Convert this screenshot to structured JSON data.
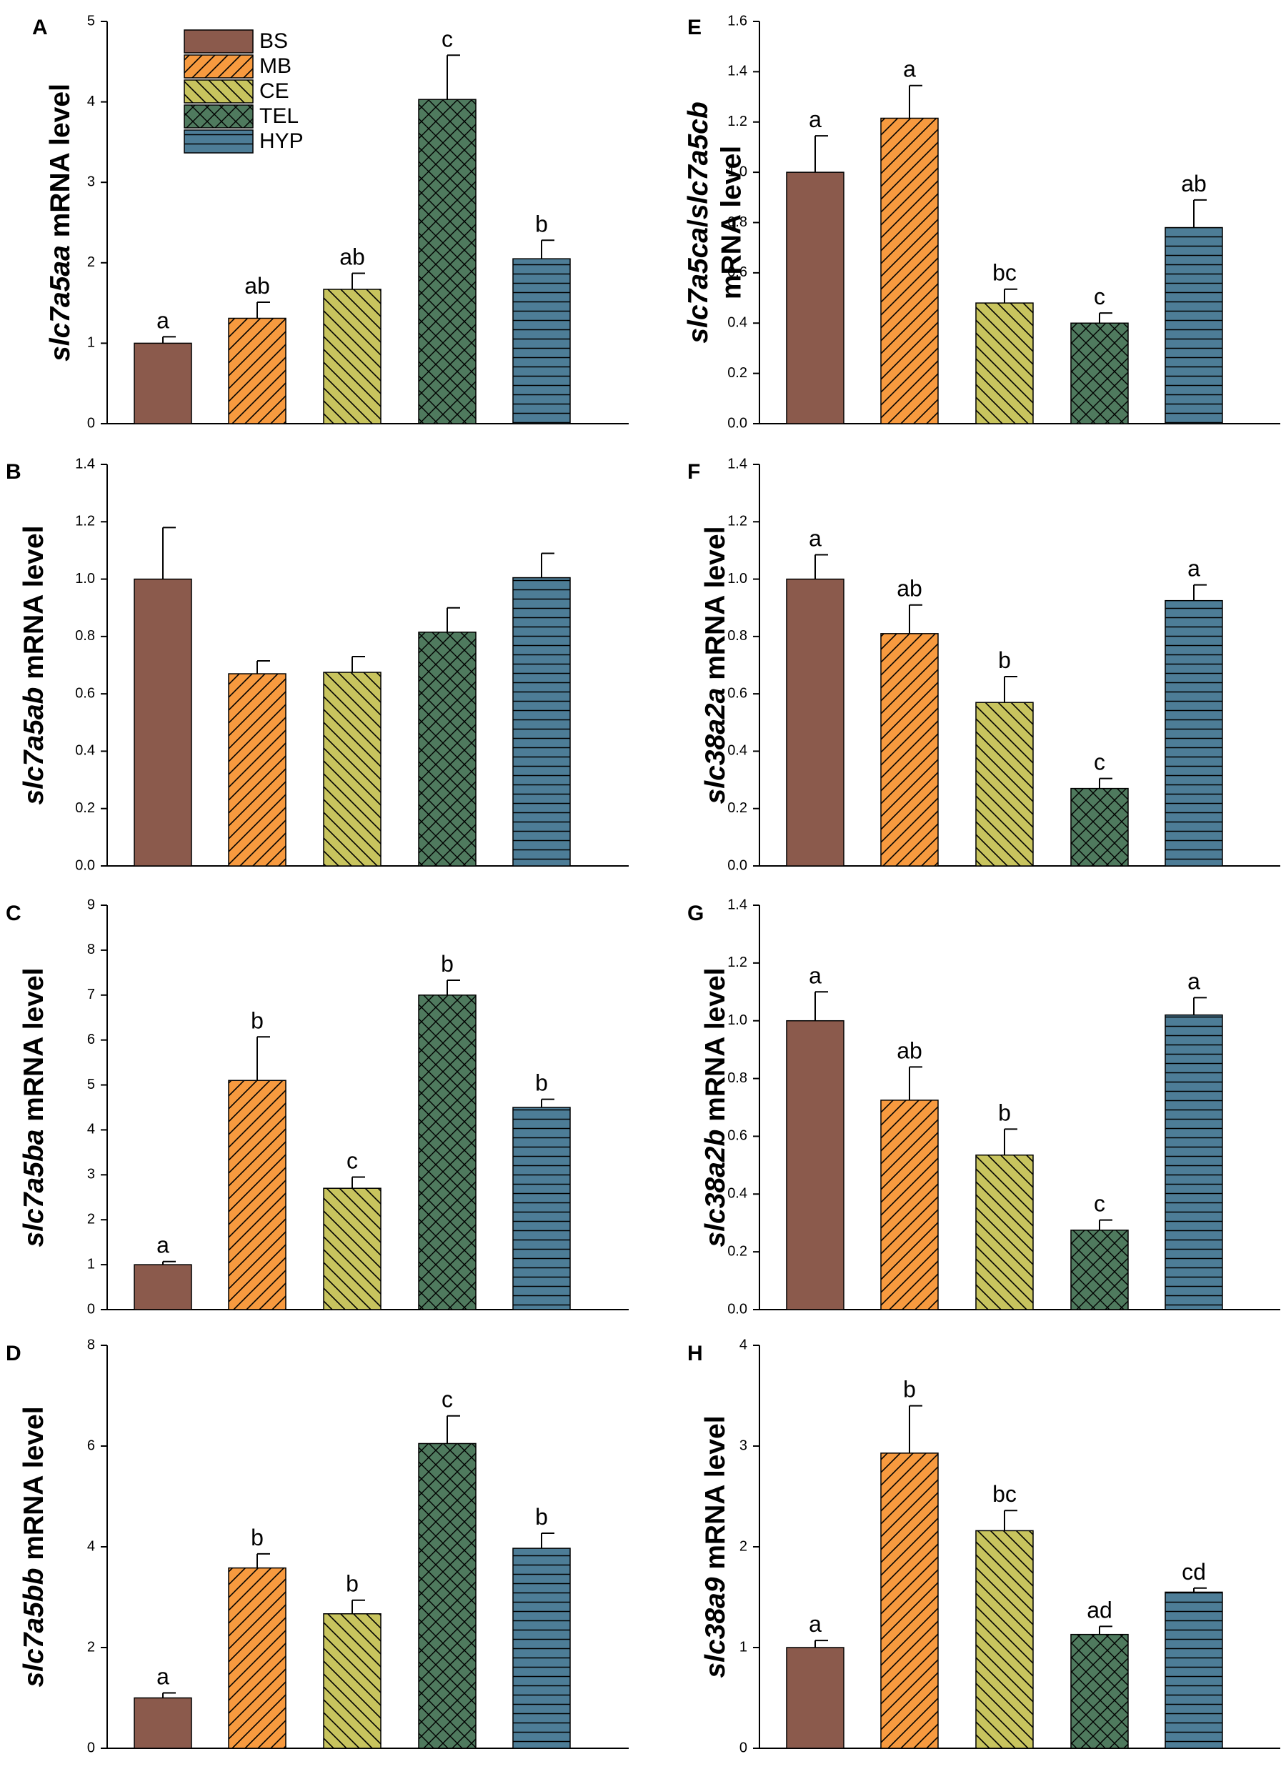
{
  "legend": {
    "items": [
      {
        "name": "BS",
        "color": "#8b5a4c",
        "pattern": "solid"
      },
      {
        "name": "MB",
        "color": "#f79a3f",
        "pattern": "hatch-up"
      },
      {
        "name": "CE",
        "color": "#c8c45e",
        "pattern": "hatch-down"
      },
      {
        "name": "TEL",
        "color": "#4f7a5e",
        "pattern": "crosshatch"
      },
      {
        "name": "HYP",
        "color": "#4d7d97",
        "pattern": "horizontal"
      }
    ]
  },
  "chart_data": [
    {
      "letter": "A",
      "type": "bar",
      "ylabel_parts": [
        {
          "t": "slc7a5aa",
          "i": true
        },
        {
          "t": " mRNA level",
          "i": false
        }
      ],
      "categories": [
        "BS",
        "MB",
        "CE",
        "TEL",
        "HYP"
      ],
      "ylim": [
        0,
        5
      ],
      "yticks": [
        {
          "v": 0,
          "label": "0"
        },
        {
          "v": 1,
          "label": "1"
        },
        {
          "v": 2,
          "label": "2"
        },
        {
          "v": 3,
          "label": "3"
        },
        {
          "v": 4,
          "label": "4"
        },
        {
          "v": 5,
          "label": "5"
        }
      ],
      "values": [
        1.0,
        1.31,
        1.67,
        4.03,
        2.05
      ],
      "errors": [
        0.08,
        0.2,
        0.2,
        0.55,
        0.23
      ],
      "letters": [
        "a",
        "ab",
        "ab",
        "c",
        "b"
      ]
    },
    {
      "letter": "B",
      "type": "bar",
      "ylabel_parts": [
        {
          "t": "slc7a5ab",
          "i": true
        },
        {
          "t": " mRNA level",
          "i": false
        }
      ],
      "categories": [
        "BS",
        "MB",
        "CE",
        "TEL",
        "HYP"
      ],
      "ylim": [
        0,
        1.4
      ],
      "yticks": [
        {
          "v": 0,
          "label": "0.0"
        },
        {
          "v": 0.2,
          "label": "0.2"
        },
        {
          "v": 0.4,
          "label": "0.4"
        },
        {
          "v": 0.6,
          "label": "0.6"
        },
        {
          "v": 0.8,
          "label": "0.8"
        },
        {
          "v": 1.0,
          "label": "1.0"
        },
        {
          "v": 1.2,
          "label": "1.2"
        },
        {
          "v": 1.4,
          "label": "1.4"
        }
      ],
      "values": [
        1.0,
        0.67,
        0.675,
        0.815,
        1.005
      ],
      "errors": [
        0.18,
        0.045,
        0.055,
        0.085,
        0.085
      ],
      "letters": []
    },
    {
      "letter": "C",
      "type": "bar",
      "ylabel_parts": [
        {
          "t": "slc7a5ba",
          "i": true
        },
        {
          "t": " mRNA level",
          "i": false
        }
      ],
      "categories": [
        "BS",
        "MB",
        "CE",
        "TEL",
        "HYP"
      ],
      "ylim": [
        0,
        9
      ],
      "yticks": [
        {
          "v": 0,
          "label": "0"
        },
        {
          "v": 1,
          "label": "1"
        },
        {
          "v": 2,
          "label": "2"
        },
        {
          "v": 3,
          "label": "3"
        },
        {
          "v": 4,
          "label": "4"
        },
        {
          "v": 5,
          "label": "5"
        },
        {
          "v": 6,
          "label": "6"
        },
        {
          "v": 7,
          "label": "7"
        },
        {
          "v": 8,
          "label": "8"
        },
        {
          "v": 9,
          "label": "9"
        }
      ],
      "values": [
        1.0,
        5.1,
        2.7,
        7.0,
        4.5
      ],
      "errors": [
        0.07,
        0.97,
        0.25,
        0.33,
        0.18
      ],
      "letters": [
        "a",
        "b",
        "c",
        "b",
        "b"
      ]
    },
    {
      "letter": "D",
      "type": "bar",
      "ylabel_parts": [
        {
          "t": "slc7a5bb",
          "i": true
        },
        {
          "t": " mRNA level",
          "i": false
        }
      ],
      "categories": [
        "BS",
        "MB",
        "CE",
        "TEL",
        "HYP"
      ],
      "ylim": [
        0,
        8
      ],
      "yticks": [
        {
          "v": 0,
          "label": "0"
        },
        {
          "v": 2,
          "label": "2"
        },
        {
          "v": 4,
          "label": "4"
        },
        {
          "v": 6,
          "label": "6"
        },
        {
          "v": 8,
          "label": "8"
        }
      ],
      "values": [
        1.0,
        3.58,
        2.67,
        6.05,
        3.97
      ],
      "errors": [
        0.1,
        0.28,
        0.27,
        0.55,
        0.3
      ],
      "letters": [
        "a",
        "b",
        "b",
        "c",
        "b"
      ]
    },
    {
      "letter": "E",
      "type": "bar",
      "ylabel_parts": [
        {
          "t": "slc7a5ca",
          "i": true
        },
        {
          "t": "/",
          "i": false
        },
        {
          "t": "slc7a5cb",
          "i": true
        }
      ],
      "ylabel_line2": "mRNA level",
      "categories": [
        "BS",
        "MB",
        "CE",
        "TEL",
        "HYP"
      ],
      "ylim": [
        0,
        1.6
      ],
      "yticks": [
        {
          "v": 0,
          "label": "0.0"
        },
        {
          "v": 0.2,
          "label": "0.2"
        },
        {
          "v": 0.4,
          "label": "0.4"
        },
        {
          "v": 0.6,
          "label": "0.6"
        },
        {
          "v": 0.8,
          "label": "0.8"
        },
        {
          "v": 1.0,
          "label": "1.0"
        },
        {
          "v": 1.2,
          "label": "1.2"
        },
        {
          "v": 1.4,
          "label": "1.4"
        },
        {
          "v": 1.6,
          "label": "1.6"
        }
      ],
      "values": [
        1.0,
        1.215,
        0.48,
        0.4,
        0.78
      ],
      "errors": [
        0.145,
        0.13,
        0.055,
        0.04,
        0.11
      ],
      "letters": [
        "a",
        "a",
        "bc",
        "c",
        "ab"
      ]
    },
    {
      "letter": "F",
      "type": "bar",
      "ylabel_parts": [
        {
          "t": "slc38a2a",
          "i": true
        },
        {
          "t": " mRNA level",
          "i": false
        }
      ],
      "categories": [
        "BS",
        "MB",
        "CE",
        "TEL",
        "HYP"
      ],
      "ylim": [
        0,
        1.4
      ],
      "yticks": [
        {
          "v": 0,
          "label": "0.0"
        },
        {
          "v": 0.2,
          "label": "0.2"
        },
        {
          "v": 0.4,
          "label": "0.4"
        },
        {
          "v": 0.6,
          "label": "0.6"
        },
        {
          "v": 0.8,
          "label": "0.8"
        },
        {
          "v": 1.0,
          "label": "1.0"
        },
        {
          "v": 1.2,
          "label": "1.2"
        },
        {
          "v": 1.4,
          "label": "1.4"
        }
      ],
      "values": [
        1.0,
        0.81,
        0.57,
        0.27,
        0.925
      ],
      "errors": [
        0.085,
        0.1,
        0.09,
        0.035,
        0.055
      ],
      "letters": [
        "a",
        "ab",
        "b",
        "c",
        "a"
      ]
    },
    {
      "letter": "G",
      "type": "bar",
      "ylabel_parts": [
        {
          "t": "slc38a2b",
          "i": true
        },
        {
          "t": " mRNA level",
          "i": false
        }
      ],
      "categories": [
        "BS",
        "MB",
        "CE",
        "TEL",
        "HYP"
      ],
      "ylim": [
        0,
        1.4
      ],
      "yticks": [
        {
          "v": 0,
          "label": "0.0"
        },
        {
          "v": 0.2,
          "label": "0.2"
        },
        {
          "v": 0.4,
          "label": "0.4"
        },
        {
          "v": 0.6,
          "label": "0.6"
        },
        {
          "v": 0.8,
          "label": "0.8"
        },
        {
          "v": 1.0,
          "label": "1.0"
        },
        {
          "v": 1.2,
          "label": "1.2"
        },
        {
          "v": 1.4,
          "label": "1.4"
        }
      ],
      "values": [
        1.0,
        0.725,
        0.535,
        0.275,
        1.02
      ],
      "errors": [
        0.1,
        0.115,
        0.09,
        0.035,
        0.06
      ],
      "letters": [
        "a",
        "ab",
        "b",
        "c",
        "a"
      ]
    },
    {
      "letter": "H",
      "type": "bar",
      "ylabel_parts": [
        {
          "t": "slc38a9",
          "i": true
        },
        {
          "t": " mRNA level",
          "i": false
        }
      ],
      "categories": [
        "BS",
        "MB",
        "CE",
        "TEL",
        "HYP"
      ],
      "ylim": [
        0,
        4
      ],
      "yticks": [
        {
          "v": 0,
          "label": "0"
        },
        {
          "v": 1,
          "label": "1"
        },
        {
          "v": 2,
          "label": "2"
        },
        {
          "v": 3,
          "label": "3"
        },
        {
          "v": 4,
          "label": "4"
        }
      ],
      "values": [
        1.0,
        2.93,
        2.16,
        1.13,
        1.55
      ],
      "errors": [
        0.07,
        0.47,
        0.2,
        0.08,
        0.04
      ],
      "letters": [
        "a",
        "b",
        "bc",
        "ad",
        "cd"
      ]
    }
  ]
}
